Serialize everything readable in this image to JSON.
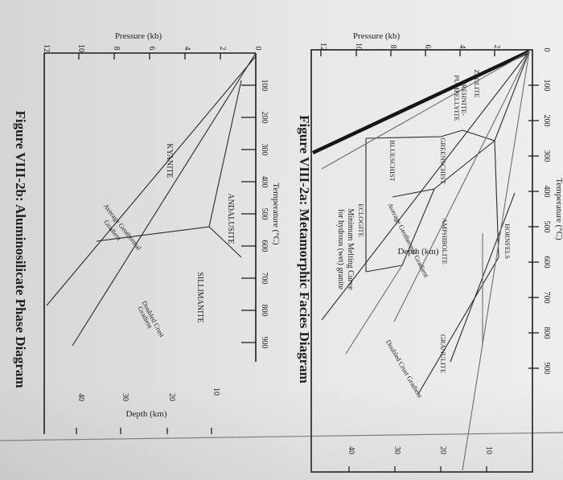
{
  "fig2a": {
    "caption": "Figure VIII-2a: Metamorphic Facies Diagram",
    "temp_axis": "Temperature (°C)",
    "temp_ticks": [
      "0",
      "100",
      "200",
      "300",
      "400",
      "500",
      "600",
      "700",
      "800",
      "900"
    ],
    "pressure_axis": "Pressure (kb)",
    "pressure_ticks": [
      "2",
      "4",
      "6",
      "8",
      "10",
      "12"
    ],
    "depth_axis": "Depth (km)",
    "depth_ticks": [
      "10",
      "20",
      "30",
      "40"
    ],
    "facies": {
      "zeolite": "ZEOLITE",
      "prehnite_1": "PREHNITE-",
      "prehnite_2": "PUMPELLYITE",
      "greenschist": "GREENSCHIST",
      "blueschist": "BLUESCHIST",
      "hornfels": "HORNFELS",
      "amphibolite": "AMPHIBOLITE",
      "eclogite": "ECLOGITE",
      "granulite": "GRANULITE"
    },
    "curves": {
      "avg_gradient": "Average Geothermal Gradient",
      "doubled": "Doubled Crust Gradient",
      "melting_1": "Minimum Melting Curve",
      "melting_2": "for hydrous (wet) granite"
    }
  },
  "fig2b": {
    "caption": "Figure VIII-2b: Aluminosilicate Phase Diagram",
    "temp_axis": "Temperature (°C)",
    "temp_ticks": [
      "100",
      "200",
      "300",
      "400",
      "500",
      "600",
      "700",
      "800",
      "900"
    ],
    "pressure_axis": "Pressure (kb)",
    "pressure_ticks": [
      "0",
      "2",
      "4",
      "6",
      "8",
      "10",
      "12"
    ],
    "depth_axis": "Depth (km)",
    "depth_ticks": [
      "10",
      "20",
      "30",
      "40"
    ],
    "phases": {
      "andalusite": "ANDALUSITE",
      "sillimanite": "SILLIMANITE",
      "kyanite": "KYANITE"
    },
    "curves": {
      "avg_1": "Average Geothermal",
      "avg_2": "Gradient",
      "doubled_1": "Doubled Crust",
      "doubled_2": "Gradient"
    }
  }
}
